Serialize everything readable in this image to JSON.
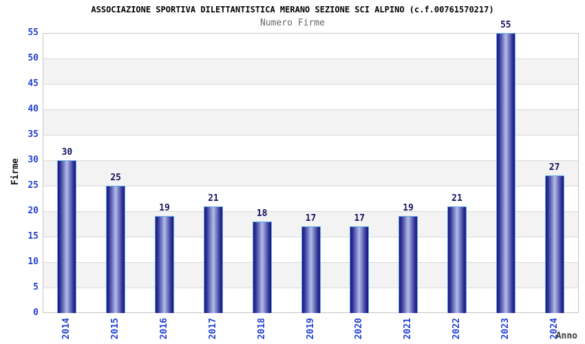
{
  "chart_data": {
    "type": "bar",
    "title": "ASSOCIAZIONE SPORTIVA DILETTANTISTICA MERANO SEZIONE SCI ALPINO (c.f.00761570217)",
    "subtitle": "Numero Firme",
    "ylabel": "Firme",
    "xlabel": "Anno",
    "categories": [
      "2014",
      "2015",
      "2016",
      "2017",
      "2018",
      "2019",
      "2020",
      "2021",
      "2022",
      "2023",
      "2024"
    ],
    "values": [
      30,
      25,
      19,
      21,
      18,
      17,
      17,
      19,
      21,
      55,
      27
    ],
    "ylim": [
      0,
      55
    ],
    "yticks": [
      0,
      5,
      10,
      15,
      20,
      25,
      30,
      35,
      40,
      45,
      50,
      55
    ],
    "grid": "horizontal gridlines every 5 units with alternating shaded bands",
    "legend": "none",
    "colors": {
      "bar_edge": "#18187c",
      "bar_mid": "#2e2e96",
      "bar_center": "#b2bde8",
      "bar_border": "#5ea9e6",
      "axis_tick_label": "#2240d0",
      "bar_value_label": "#12125e",
      "title": "#000000",
      "subtitle": "#666666",
      "ylabel": "#111111",
      "xlabel": "#3a3a3a",
      "band": "#f3f3f3",
      "gridline": "#d9d9d9",
      "plot_border": "#c3c3c3",
      "plot_background": "#ffffff"
    }
  }
}
